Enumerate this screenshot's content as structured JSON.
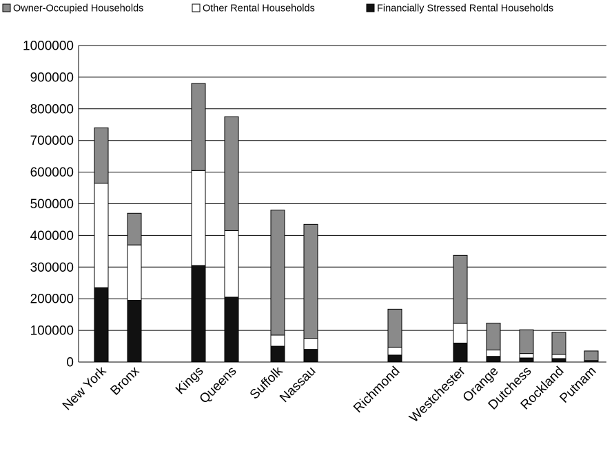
{
  "chart_data": {
    "type": "bar",
    "stacked": true,
    "title": "",
    "xlabel": "",
    "ylabel": "",
    "ylim": [
      0,
      1000000
    ],
    "yticks": [
      0,
      100000,
      200000,
      300000,
      400000,
      500000,
      600000,
      700000,
      800000,
      900000,
      1000000
    ],
    "grid": true,
    "legend_position": "top",
    "categories": [
      "New York",
      "Bronx",
      "Kings",
      "Queens",
      "Suffolk",
      "Nassau",
      "Richmond",
      "Westchester",
      "Orange",
      "Dutchess",
      "Rockland",
      "Putnam"
    ],
    "series": [
      {
        "name": "Owner-Occupied Households",
        "color": "#8a8a8a",
        "values": [
          175000,
          100000,
          275000,
          360000,
          395000,
          360000,
          120000,
          215000,
          85000,
          75000,
          70000,
          30000
        ]
      },
      {
        "name": "Other Rental Households",
        "color": "#ffffff",
        "values": [
          330000,
          175000,
          300000,
          210000,
          35000,
          35000,
          25000,
          62000,
          20000,
          14000,
          13000,
          3000
        ]
      },
      {
        "name": "Financially Stressed Rental Households",
        "color": "#111111",
        "values": [
          235000,
          195000,
          305000,
          205000,
          50000,
          40000,
          22000,
          60000,
          18000,
          13000,
          11000,
          2000
        ]
      }
    ]
  }
}
